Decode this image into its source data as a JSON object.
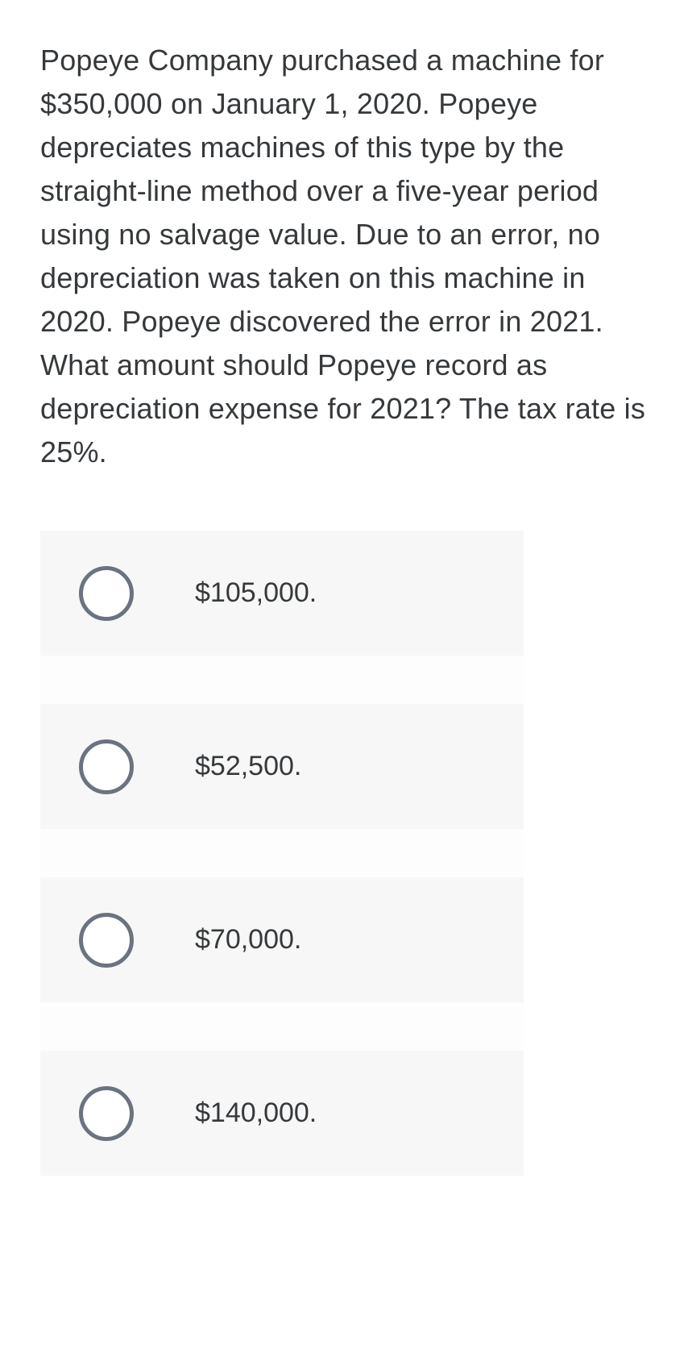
{
  "question": {
    "text": "Popeye Company purchased a machine for $350,000 on January 1, 2020. Popeye depreciates machines of this type by the straight-line method over a five-year period using no salvage value. Due to an error, no depreciation was taken on this machine in 2020. Popeye discovered the error in 2021. What amount should Popeye record as depreciation expense for 2021? The tax rate is 25%."
  },
  "options": [
    {
      "label": "$105,000."
    },
    {
      "label": "$52,500."
    },
    {
      "label": "$70,000."
    },
    {
      "label": "$140,000."
    }
  ],
  "colors": {
    "text": "#36393b",
    "option_bg": "#f7f7f7",
    "radio_border": "#6b7280",
    "page_bg": "#ffffff"
  }
}
